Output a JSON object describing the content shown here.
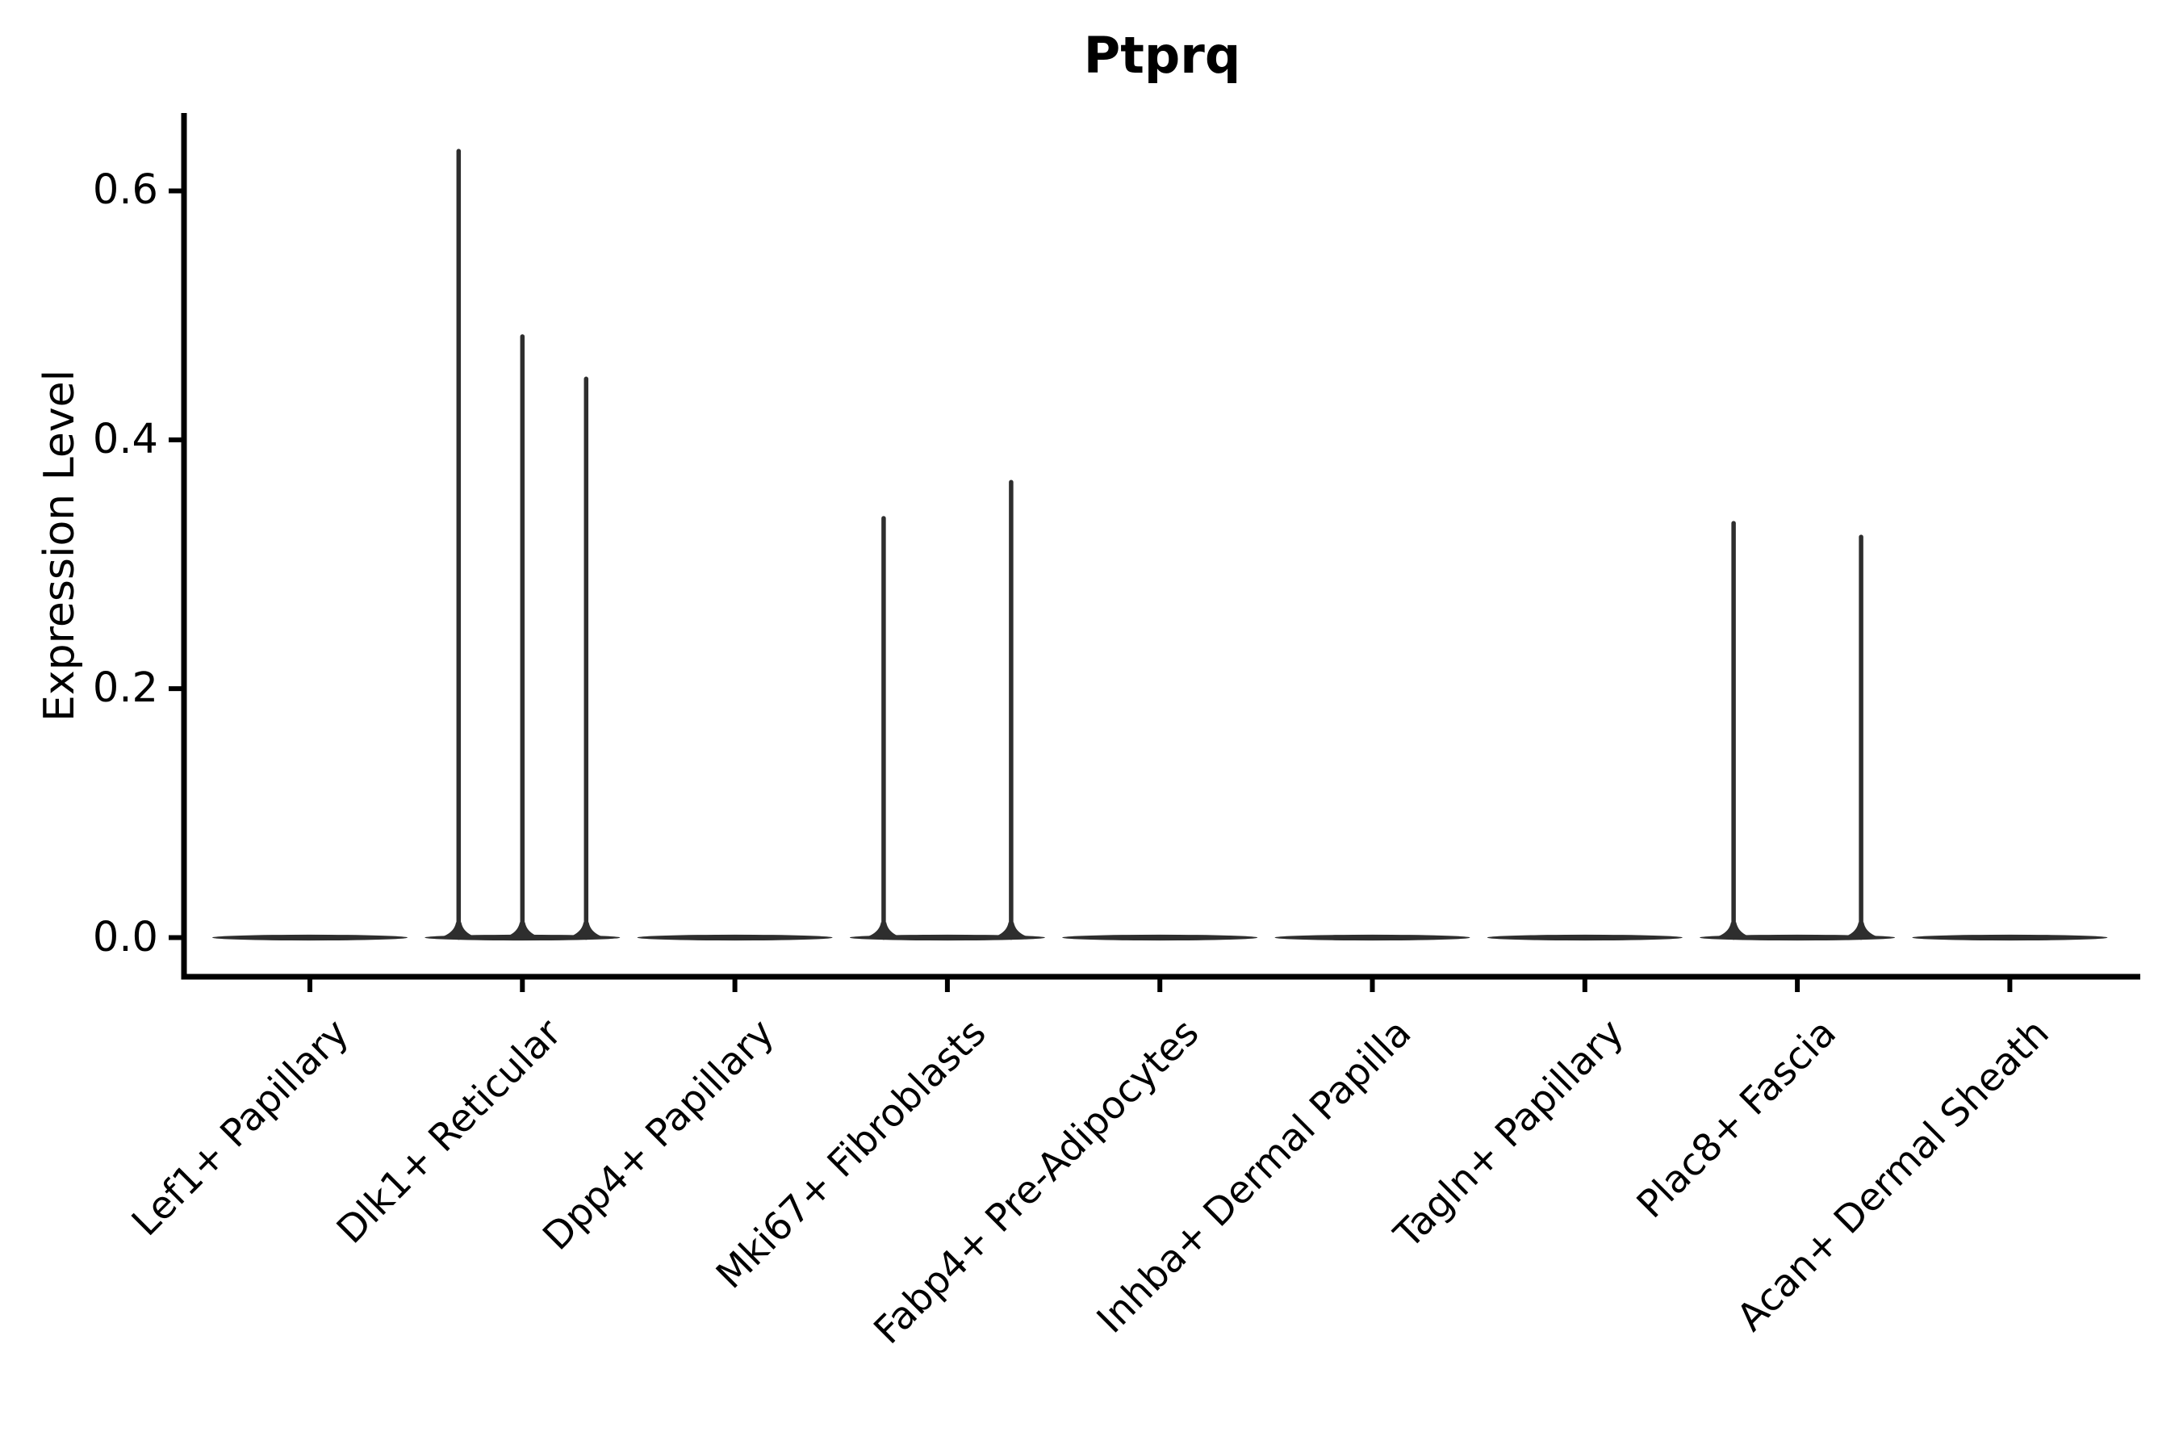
{
  "figure": {
    "background": "#ffffff",
    "text_color": "#000000",
    "axis_color": "#000000",
    "violin_color": "#2e2e2e"
  },
  "chart_data": {
    "type": "violin",
    "title": "Ptprq",
    "ylabel": "Expression Level",
    "xlabel": "",
    "grid": false,
    "legend": "none",
    "ylim": [
      -0.03,
      0.66
    ],
    "ytick_labels": [
      "0.0",
      "0.2",
      "0.4",
      "0.6"
    ],
    "ytick_values": [
      0.0,
      0.2,
      0.4,
      0.6
    ],
    "categories": [
      "Lef1+ Papillary",
      "Dlk1+ Reticular",
      "Dpp4+ Papillary",
      "Mki67+ Fibroblasts",
      "Fabp4+ Pre-Adipocytes",
      "Inhba+ Dermal Papilla",
      "Tagln+ Papillary",
      "Plac8+ Fascia",
      "Acan+ Dermal Sheath"
    ],
    "violins": [
      {
        "category": "Lef1+ Papillary",
        "body_at_zero": true,
        "spikes": []
      },
      {
        "category": "Dlk1+ Reticular",
        "body_at_zero": true,
        "spikes": [
          {
            "offset": -0.3,
            "value": 0.632
          },
          {
            "offset": 0.0,
            "value": 0.483
          },
          {
            "offset": 0.3,
            "value": 0.449
          }
        ]
      },
      {
        "category": "Dpp4+ Papillary",
        "body_at_zero": true,
        "spikes": []
      },
      {
        "category": "Mki67+ Fibroblasts",
        "body_at_zero": true,
        "spikes": [
          {
            "offset": -0.3,
            "value": 0.337
          },
          {
            "offset": 0.3,
            "value": 0.366
          }
        ]
      },
      {
        "category": "Fabp4+ Pre-Adipocytes",
        "body_at_zero": true,
        "spikes": []
      },
      {
        "category": "Inhba+ Dermal Papilla",
        "body_at_zero": true,
        "spikes": []
      },
      {
        "category": "Tagln+ Papillary",
        "body_at_zero": true,
        "spikes": []
      },
      {
        "category": "Plac8+ Fascia",
        "body_at_zero": true,
        "spikes": [
          {
            "offset": -0.3,
            "value": 0.333
          },
          {
            "offset": 0.3,
            "value": 0.322
          }
        ]
      },
      {
        "category": "Acan+ Dermal Sheath",
        "body_at_zero": true,
        "spikes": []
      }
    ]
  }
}
